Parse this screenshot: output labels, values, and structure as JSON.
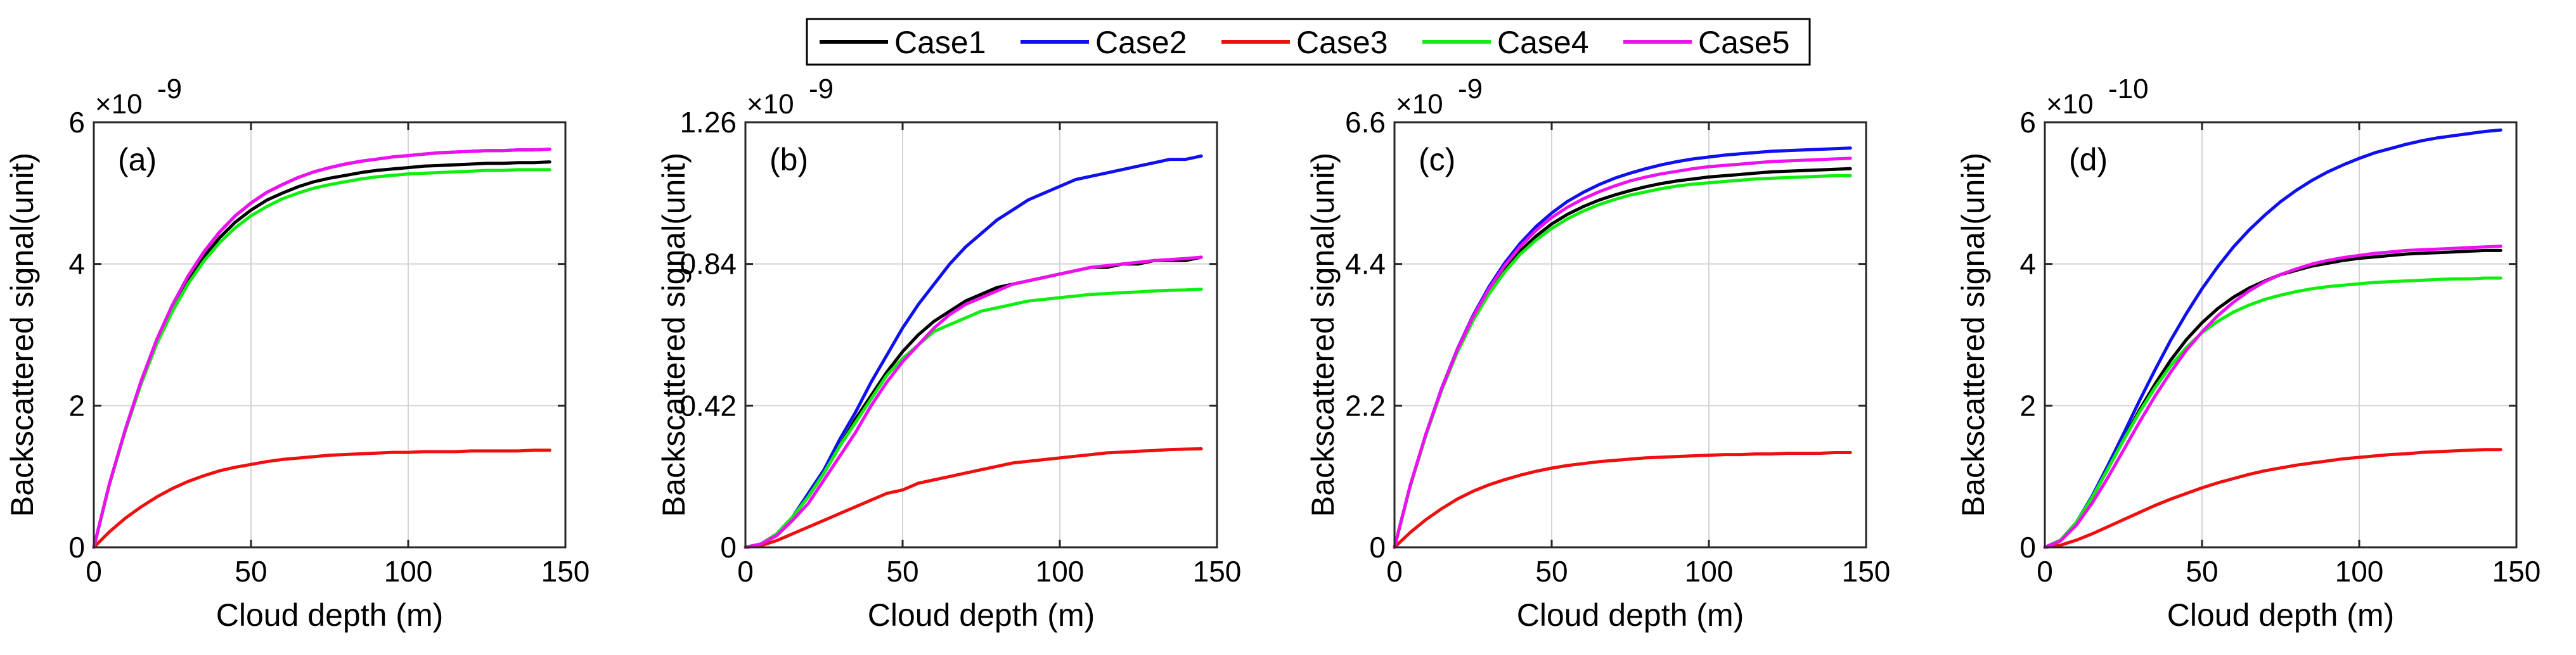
{
  "legend": [
    {
      "name": "Case1",
      "color": "#000000"
    },
    {
      "name": "Case2",
      "color": "#1010ee"
    },
    {
      "name": "Case3",
      "color": "#ee1010"
    },
    {
      "name": "Case4",
      "color": "#10ee10"
    },
    {
      "name": "Case5",
      "color": "#ee10ee"
    }
  ],
  "chart_data": [
    {
      "type": "line",
      "panel": "(a)",
      "xlabel": "Cloud depth (m)",
      "ylabel": "Backscattered signal(unit)",
      "exponent": "×10",
      "exponent_power": "-9",
      "xlim": [
        0,
        150
      ],
      "ylim": [
        0,
        6
      ],
      "xticks": [
        0,
        50,
        100,
        150
      ],
      "yticks": [
        0,
        2,
        4,
        6
      ],
      "ytick_labels": [
        "0",
        "2",
        "4",
        "6"
      ],
      "grid": true,
      "x": [
        0,
        5,
        10,
        15,
        20,
        25,
        30,
        35,
        40,
        45,
        50,
        55,
        60,
        65,
        70,
        75,
        80,
        85,
        90,
        95,
        100,
        105,
        110,
        115,
        120,
        125,
        130,
        135,
        140,
        145
      ],
      "series": [
        {
          "name": "Case1",
          "values": [
            0,
            0.9,
            1.65,
            2.32,
            2.9,
            3.37,
            3.77,
            4.1,
            4.37,
            4.59,
            4.76,
            4.9,
            5.0,
            5.09,
            5.16,
            5.21,
            5.25,
            5.29,
            5.32,
            5.34,
            5.36,
            5.38,
            5.39,
            5.4,
            5.41,
            5.42,
            5.42,
            5.43,
            5.43,
            5.44
          ]
        },
        {
          "name": "Case2",
          "values": [
            0,
            0.9,
            1.66,
            2.34,
            2.93,
            3.42,
            3.83,
            4.17,
            4.45,
            4.68,
            4.86,
            5.01,
            5.12,
            5.22,
            5.3,
            5.36,
            5.41,
            5.45,
            5.48,
            5.51,
            5.53,
            5.55,
            5.57,
            5.58,
            5.59,
            5.6,
            5.6,
            5.61,
            5.61,
            5.62
          ]
        },
        {
          "name": "Case3",
          "values": [
            0,
            0.22,
            0.41,
            0.57,
            0.71,
            0.83,
            0.93,
            1.01,
            1.08,
            1.13,
            1.17,
            1.21,
            1.24,
            1.26,
            1.28,
            1.3,
            1.31,
            1.32,
            1.33,
            1.34,
            1.34,
            1.35,
            1.35,
            1.35,
            1.36,
            1.36,
            1.36,
            1.36,
            1.37,
            1.37
          ]
        },
        {
          "name": "Case4",
          "values": [
            0,
            0.89,
            1.64,
            2.3,
            2.87,
            3.33,
            3.72,
            4.04,
            4.3,
            4.51,
            4.68,
            4.81,
            4.92,
            5.0,
            5.07,
            5.12,
            5.16,
            5.2,
            5.23,
            5.25,
            5.27,
            5.28,
            5.29,
            5.3,
            5.31,
            5.32,
            5.32,
            5.33,
            5.33,
            5.33
          ]
        },
        {
          "name": "Case5",
          "values": [
            0,
            0.9,
            1.66,
            2.34,
            2.93,
            3.42,
            3.83,
            4.17,
            4.45,
            4.68,
            4.86,
            5.01,
            5.12,
            5.22,
            5.3,
            5.36,
            5.41,
            5.45,
            5.48,
            5.51,
            5.53,
            5.55,
            5.57,
            5.58,
            5.59,
            5.6,
            5.6,
            5.61,
            5.61,
            5.62
          ]
        }
      ]
    },
    {
      "type": "line",
      "panel": "(b)",
      "xlabel": "Cloud depth (m)",
      "ylabel": "Backscattered signal(unit)",
      "exponent": "×10",
      "exponent_power": "-9",
      "xlim": [
        0,
        150
      ],
      "ylim": [
        0,
        1.26
      ],
      "xticks": [
        0,
        50,
        100,
        150
      ],
      "yticks": [
        0,
        0.42,
        0.84,
        1.26
      ],
      "ytick_labels": [
        "0",
        "0.42",
        "0.84",
        "1.26"
      ],
      "grid": true,
      "x": [
        0,
        5,
        10,
        15,
        20,
        25,
        30,
        35,
        40,
        45,
        50,
        55,
        60,
        65,
        70,
        75,
        80,
        85,
        90,
        95,
        100,
        105,
        110,
        115,
        120,
        125,
        130,
        135,
        140,
        145
      ],
      "series": [
        {
          "name": "Case1",
          "values": [
            0,
            0.01,
            0.04,
            0.09,
            0.15,
            0.22,
            0.3,
            0.38,
            0.45,
            0.52,
            0.58,
            0.63,
            0.67,
            0.7,
            0.73,
            0.75,
            0.77,
            0.78,
            0.79,
            0.8,
            0.81,
            0.82,
            0.83,
            0.83,
            0.84,
            0.84,
            0.85,
            0.85,
            0.85,
            0.86
          ]
        },
        {
          "name": "Case2",
          "values": [
            0,
            0.01,
            0.04,
            0.09,
            0.16,
            0.23,
            0.32,
            0.4,
            0.49,
            0.57,
            0.65,
            0.72,
            0.78,
            0.84,
            0.89,
            0.93,
            0.97,
            1.0,
            1.03,
            1.05,
            1.07,
            1.09,
            1.1,
            1.11,
            1.12,
            1.13,
            1.14,
            1.15,
            1.15,
            1.16
          ]
        },
        {
          "name": "Case3",
          "values": [
            0,
            0.005,
            0.02,
            0.04,
            0.06,
            0.08,
            0.1,
            0.12,
            0.14,
            0.16,
            0.17,
            0.19,
            0.2,
            0.21,
            0.22,
            0.23,
            0.24,
            0.25,
            0.255,
            0.26,
            0.265,
            0.27,
            0.275,
            0.28,
            0.282,
            0.285,
            0.287,
            0.29,
            0.291,
            0.292
          ]
        },
        {
          "name": "Case4",
          "values": [
            0,
            0.01,
            0.04,
            0.09,
            0.15,
            0.22,
            0.3,
            0.37,
            0.44,
            0.51,
            0.56,
            0.6,
            0.64,
            0.66,
            0.68,
            0.7,
            0.71,
            0.72,
            0.73,
            0.735,
            0.74,
            0.745,
            0.75,
            0.752,
            0.755,
            0.757,
            0.76,
            0.762,
            0.763,
            0.765
          ]
        },
        {
          "name": "Case5",
          "values": [
            0,
            0.01,
            0.035,
            0.08,
            0.13,
            0.2,
            0.27,
            0.34,
            0.42,
            0.49,
            0.55,
            0.6,
            0.65,
            0.69,
            0.72,
            0.74,
            0.76,
            0.78,
            0.79,
            0.8,
            0.81,
            0.82,
            0.83,
            0.835,
            0.84,
            0.845,
            0.85,
            0.853,
            0.856,
            0.86
          ]
        }
      ]
    },
    {
      "type": "line",
      "panel": "(c)",
      "xlabel": "Cloud depth (m)",
      "ylabel": "Backscattered signal(unit)",
      "exponent": "×10",
      "exponent_power": "-9",
      "xlim": [
        0,
        150
      ],
      "ylim": [
        0,
        6.6
      ],
      "xticks": [
        0,
        50,
        100,
        150
      ],
      "yticks": [
        0,
        2.2,
        4.4,
        6.6
      ],
      "ytick_labels": [
        "0",
        "2.2",
        "4.4",
        "6.6"
      ],
      "grid": true,
      "x": [
        0,
        5,
        10,
        15,
        20,
        25,
        30,
        35,
        40,
        45,
        50,
        55,
        60,
        65,
        70,
        75,
        80,
        85,
        90,
        95,
        100,
        105,
        110,
        115,
        120,
        125,
        130,
        135,
        140,
        145
      ],
      "series": [
        {
          "name": "Case1",
          "values": [
            0,
            0.95,
            1.75,
            2.45,
            3.05,
            3.55,
            3.97,
            4.32,
            4.6,
            4.83,
            5.02,
            5.17,
            5.29,
            5.39,
            5.47,
            5.54,
            5.6,
            5.65,
            5.69,
            5.72,
            5.75,
            5.77,
            5.79,
            5.81,
            5.83,
            5.84,
            5.85,
            5.86,
            5.87,
            5.88
          ]
        },
        {
          "name": "Case2",
          "values": [
            0,
            0.96,
            1.76,
            2.47,
            3.08,
            3.6,
            4.04,
            4.41,
            4.72,
            4.98,
            5.19,
            5.37,
            5.51,
            5.63,
            5.73,
            5.81,
            5.88,
            5.94,
            5.99,
            6.03,
            6.06,
            6.09,
            6.11,
            6.13,
            6.15,
            6.16,
            6.17,
            6.18,
            6.19,
            6.2
          ]
        },
        {
          "name": "Case3",
          "values": [
            0,
            0.23,
            0.43,
            0.6,
            0.75,
            0.87,
            0.97,
            1.05,
            1.12,
            1.18,
            1.23,
            1.27,
            1.3,
            1.33,
            1.35,
            1.37,
            1.39,
            1.4,
            1.41,
            1.42,
            1.43,
            1.44,
            1.44,
            1.45,
            1.45,
            1.46,
            1.46,
            1.46,
            1.47,
            1.47
          ]
        },
        {
          "name": "Case4",
          "values": [
            0,
            0.95,
            1.74,
            2.44,
            3.03,
            3.52,
            3.93,
            4.27,
            4.55,
            4.77,
            4.95,
            5.1,
            5.22,
            5.32,
            5.4,
            5.47,
            5.52,
            5.57,
            5.61,
            5.64,
            5.66,
            5.68,
            5.7,
            5.72,
            5.73,
            5.74,
            5.75,
            5.76,
            5.77,
            5.77
          ]
        },
        {
          "name": "Case5",
          "values": [
            0,
            0.96,
            1.76,
            2.46,
            3.07,
            3.58,
            4.01,
            4.37,
            4.67,
            4.92,
            5.12,
            5.28,
            5.41,
            5.52,
            5.61,
            5.69,
            5.75,
            5.8,
            5.84,
            5.88,
            5.91,
            5.93,
            5.95,
            5.97,
            5.99,
            6.0,
            6.01,
            6.02,
            6.03,
            6.04
          ]
        }
      ]
    },
    {
      "type": "line",
      "panel": "(d)",
      "xlabel": "Cloud depth (m)",
      "ylabel": "Backscattered signal(unit)",
      "exponent": "×10",
      "exponent_power": "-10",
      "xlim": [
        0,
        150
      ],
      "ylim": [
        0,
        6
      ],
      "xticks": [
        0,
        50,
        100,
        150
      ],
      "yticks": [
        0,
        2,
        4,
        6
      ],
      "ytick_labels": [
        "0",
        "2",
        "4",
        "6"
      ],
      "grid": true,
      "x": [
        0,
        5,
        10,
        15,
        20,
        25,
        30,
        35,
        40,
        45,
        50,
        55,
        60,
        65,
        70,
        75,
        80,
        85,
        90,
        95,
        100,
        105,
        110,
        115,
        120,
        125,
        130,
        135,
        140,
        145
      ],
      "series": [
        {
          "name": "Case1",
          "values": [
            0,
            0.1,
            0.35,
            0.7,
            1.1,
            1.52,
            1.93,
            2.3,
            2.64,
            2.93,
            3.17,
            3.37,
            3.53,
            3.66,
            3.76,
            3.85,
            3.91,
            3.97,
            4.01,
            4.05,
            4.08,
            4.1,
            4.12,
            4.14,
            4.15,
            4.16,
            4.17,
            4.18,
            4.19,
            4.19
          ]
        },
        {
          "name": "Case2",
          "values": [
            0,
            0.1,
            0.35,
            0.72,
            1.15,
            1.6,
            2.06,
            2.5,
            2.92,
            3.3,
            3.65,
            3.96,
            4.24,
            4.48,
            4.69,
            4.88,
            5.04,
            5.18,
            5.3,
            5.4,
            5.49,
            5.57,
            5.63,
            5.69,
            5.74,
            5.78,
            5.81,
            5.84,
            5.87,
            5.89
          ]
        },
        {
          "name": "Case3",
          "values": [
            0,
            0.03,
            0.1,
            0.19,
            0.29,
            0.39,
            0.49,
            0.59,
            0.68,
            0.76,
            0.84,
            0.91,
            0.97,
            1.03,
            1.08,
            1.12,
            1.16,
            1.19,
            1.22,
            1.25,
            1.27,
            1.29,
            1.31,
            1.32,
            1.34,
            1.35,
            1.36,
            1.37,
            1.38,
            1.38
          ]
        },
        {
          "name": "Case4",
          "values": [
            0,
            0.1,
            0.35,
            0.7,
            1.1,
            1.51,
            1.9,
            2.25,
            2.56,
            2.82,
            3.03,
            3.19,
            3.32,
            3.42,
            3.5,
            3.56,
            3.61,
            3.65,
            3.68,
            3.7,
            3.72,
            3.74,
            3.75,
            3.76,
            3.77,
            3.78,
            3.79,
            3.79,
            3.8,
            3.8
          ]
        },
        {
          "name": "Case5",
          "values": [
            0,
            0.09,
            0.31,
            0.62,
            0.98,
            1.37,
            1.76,
            2.13,
            2.47,
            2.78,
            3.04,
            3.27,
            3.46,
            3.62,
            3.75,
            3.85,
            3.93,
            4.0,
            4.05,
            4.09,
            4.12,
            4.15,
            4.17,
            4.19,
            4.2,
            4.21,
            4.22,
            4.23,
            4.24,
            4.25
          ]
        }
      ]
    }
  ]
}
